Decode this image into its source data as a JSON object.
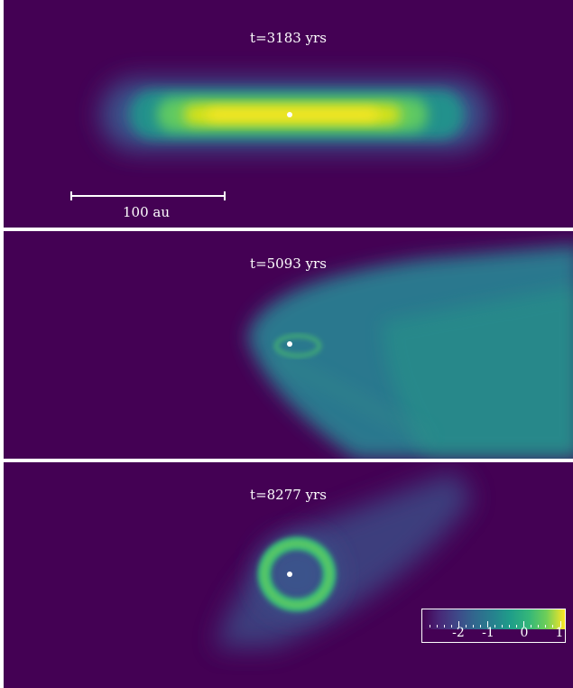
{
  "panels": [
    {
      "title": "t=3183 yrs"
    },
    {
      "title": "t=5093 yrs"
    },
    {
      "title": "t=8277 yrs"
    }
  ],
  "scale_bar": {
    "label": "100 au"
  },
  "colorbar": {
    "tick_labels": [
      "-2",
      "-1",
      "0",
      "1"
    ],
    "colormap": "viridis"
  },
  "colors": {
    "background": "#440154",
    "star": "#ffffff"
  }
}
